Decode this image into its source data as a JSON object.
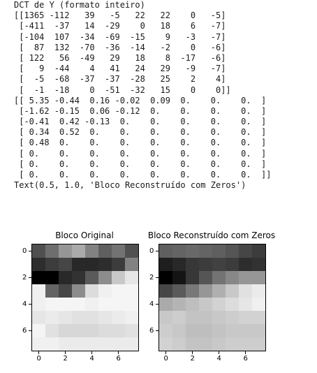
{
  "output_lines": [
    "DCT de Y (formato inteiro)",
    "[[1365 -112   39   -5   22   22    0   -5]",
    " [-411  -37   14  -29    0   18    6   -7]",
    " [-104  107  -34  -69  -15    9   -3   -7]",
    " [  87  132  -70  -36  -14   -2    0   -6]",
    " [ 122   56  -49   29   18    8  -17   -6]",
    " [   9  -44    4   41   24   29   -9   -7]",
    " [  -5  -68  -37  -37  -28   25    2    4]",
    " [  -1  -18    0  -51  -32   15    0    0]]",
    "[[ 5.35 -0.44  0.16 -0.02  0.09  0.    0.    0.  ]",
    " [-1.62 -0.15  0.06 -0.12  0.    0.    0.    0.  ]",
    " [-0.41  0.42 -0.13  0.    0.    0.    0.    0.  ]",
    " [ 0.34  0.52  0.    0.    0.    0.    0.    0.  ]",
    " [ 0.48  0.    0.    0.    0.    0.    0.    0.  ]",
    " [ 0.    0.    0.    0.    0.    0.    0.    0.  ]",
    " [ 0.    0.    0.    0.    0.    0.    0.    0.  ]",
    " [ 0.    0.    0.    0.    0.    0.    0.    0.  ]]",
    "Text(0.5, 1.0, 'Bloco Reconstruído com Zeros')"
  ],
  "chart_data": [
    {
      "type": "heatmap",
      "title": "Bloco Original",
      "colormap": "gray",
      "x_ticks": [
        "0",
        "2",
        "4",
        "6"
      ],
      "y_ticks": [
        "0",
        "2",
        "4",
        "6"
      ],
      "values": [
        [
          80,
          110,
          150,
          170,
          130,
          95,
          115,
          80
        ],
        [
          45,
          60,
          70,
          40,
          40,
          45,
          60,
          130
        ],
        [
          0,
          0,
          40,
          50,
          90,
          140,
          200,
          230
        ],
        [
          240,
          100,
          70,
          140,
          220,
          240,
          245,
          245
        ],
        [
          240,
          245,
          245,
          245,
          240,
          245,
          245,
          245
        ],
        [
          230,
          235,
          230,
          225,
          225,
          230,
          235,
          240
        ],
        [
          245,
          225,
          215,
          215,
          215,
          220,
          220,
          225
        ],
        [
          240,
          240,
          235,
          235,
          235,
          235,
          235,
          235
        ]
      ]
    },
    {
      "type": "heatmap",
      "title": "Bloco Reconstruído com Zeros",
      "colormap": "gray",
      "x_ticks": [
        "0",
        "2",
        "4",
        "6"
      ],
      "y_ticks": [
        "0",
        "2",
        "4",
        "6"
      ],
      "values": [
        [
          95,
          100,
          105,
          100,
          95,
          85,
          70,
          60
        ],
        [
          30,
          40,
          55,
          60,
          65,
          60,
          45,
          50
        ],
        [
          0,
          20,
          55,
          85,
          115,
          135,
          150,
          150
        ],
        [
          70,
          90,
          120,
          150,
          175,
          200,
          225,
          235
        ],
        [
          170,
          180,
          190,
          200,
          210,
          220,
          230,
          240
        ],
        [
          200,
          205,
          195,
          195,
          200,
          205,
          210,
          210
        ],
        [
          205,
          200,
          190,
          190,
          195,
          200,
          200,
          200
        ],
        [
          210,
          205,
          195,
          195,
          200,
          205,
          205,
          205
        ]
      ]
    }
  ]
}
